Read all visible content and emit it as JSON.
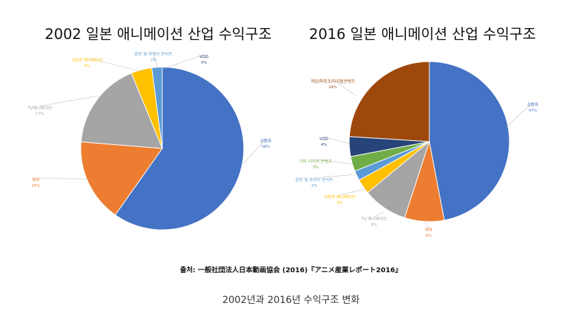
{
  "chart_data": [
    {
      "type": "pie",
      "title": "2002 일본 애니메이션 산업 수익구조",
      "slices": [
        {
          "label": "상품화",
          "pct": "58%",
          "value": 58,
          "color": "#4472C4"
        },
        {
          "label": "해외",
          "pct": "16%",
          "value": 16,
          "color": "#ED7D31"
        },
        {
          "label": "TV애니메이션",
          "pct": "17%",
          "value": 17,
          "color": "#A5A5A5"
        },
        {
          "label": "극장판 애니메이션",
          "pct": "4%",
          "value": 4,
          "color": "#FFC000"
        },
        {
          "label": "음반 및 라이브 콘서트",
          "pct": "2%",
          "value": 2,
          "color": "#5B9BD5"
        },
        {
          "label": "VOD",
          "pct": "0%",
          "value": 0,
          "color": "#264478"
        }
      ]
    },
    {
      "type": "pie",
      "title": "2016 일본 애니메이션 산업 수익구조",
      "slices": [
        {
          "label": "상품화",
          "pct": "47%",
          "value": 47,
          "color": "#4472C4"
        },
        {
          "label": "해외",
          "pct": "8%",
          "value": 8,
          "color": "#ED7D31"
        },
        {
          "label": "TV 애니메이션",
          "pct": "9%",
          "value": 9,
          "color": "#A5A5A5"
        },
        {
          "label": "극장판 애니메이션",
          "pct": "3%",
          "value": 3,
          "color": "#FFC000"
        },
        {
          "label": "음반 및 라이브 콘서트",
          "pct": "2%",
          "value": 2,
          "color": "#5B9BD5"
        },
        {
          "label": "기타 라이브 콘텐츠",
          "pct": "3%",
          "value": 3,
          "color": "#70AD47"
        },
        {
          "label": "VOD",
          "pct": "4%",
          "value": 4,
          "color": "#264478"
        },
        {
          "label": "게임/파칭코/디지털콘텐츠",
          "pct": "24%",
          "value": 24,
          "color": "#9E480E"
        }
      ]
    }
  ],
  "source": "출처: 一般社団法人日本動画協会 (2016)『アニメ産業レポート2016』",
  "caption": "2002년과 2016년 수익구조 변화"
}
